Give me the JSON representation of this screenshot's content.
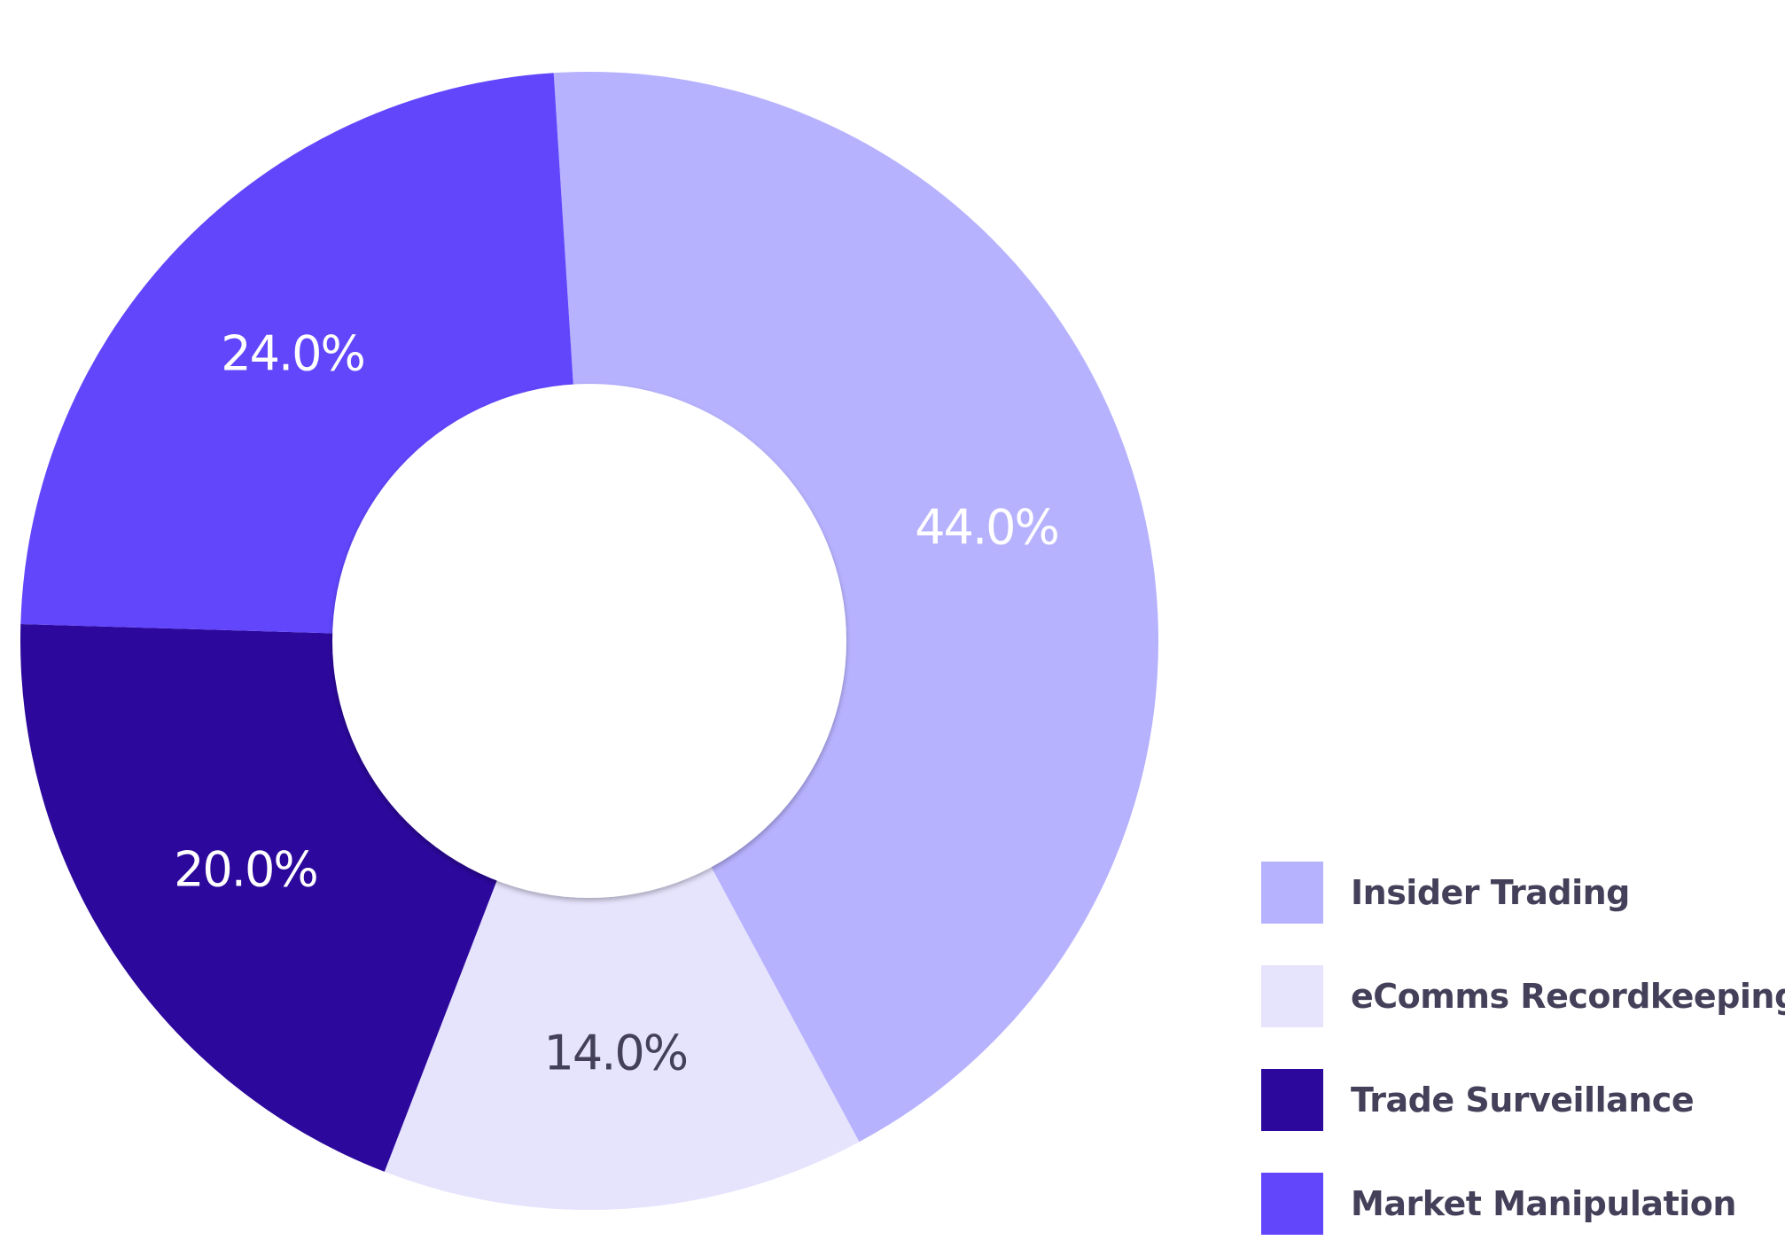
{
  "chart_data": {
    "type": "pie",
    "donut": true,
    "title": "",
    "categories": [
      "Insider Trading",
      "eComms Recordkeeping",
      "Trade Surveillance",
      "Market Manipulation"
    ],
    "values": [
      44.0,
      14.0,
      20.0,
      24.0
    ],
    "labels": [
      "44.0%",
      "14.0%",
      "20.0%",
      "24.0%"
    ],
    "colors": [
      "#b7b2fe",
      "#e6e3fd",
      "#2c089c",
      "#6146fc"
    ],
    "label_colors": [
      "#ffffff",
      "#45405a",
      "#ffffff",
      "#ffffff"
    ],
    "legend": {
      "position": "bottom-right",
      "entries": [
        "Insider Trading",
        "eComms Recordkeeping",
        "Trade Surveillance",
        "Market Manipulation"
      ]
    },
    "start_angle_deg": -3.6,
    "direction": "clockwise"
  }
}
